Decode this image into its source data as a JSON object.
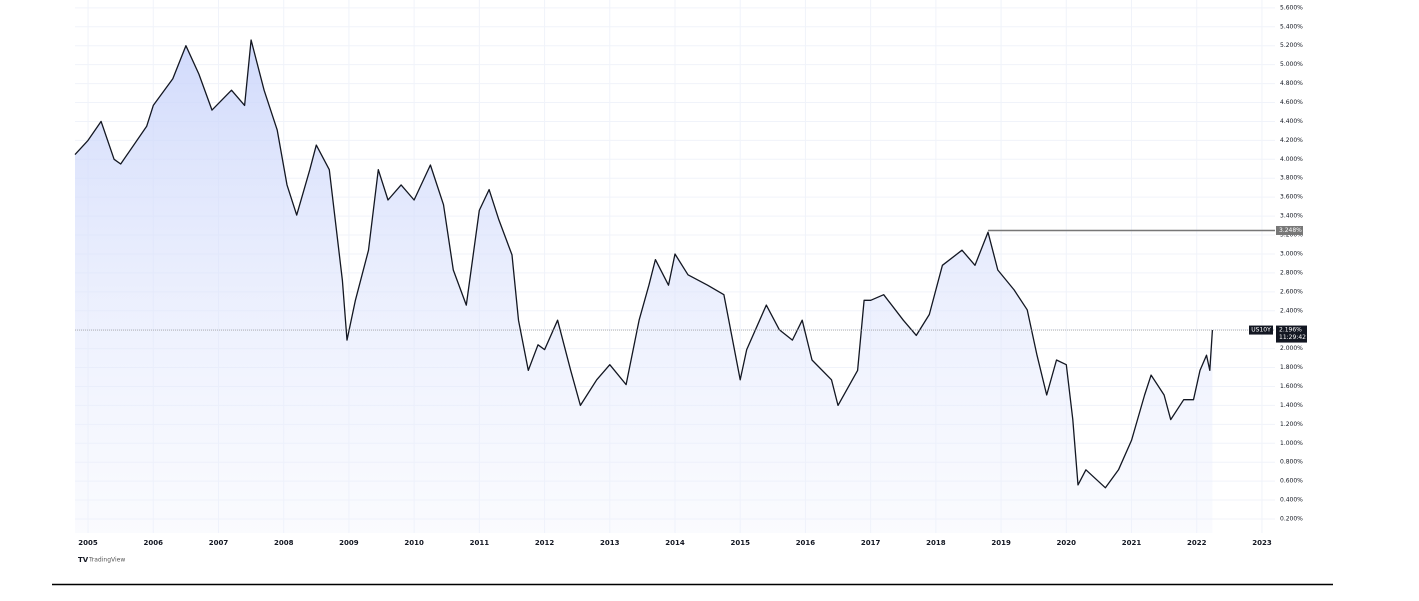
{
  "chart_data": {
    "type": "line",
    "series": [
      {
        "name": "US10Y",
        "color": "#131722",
        "x": [
          2004.8,
          2005.0,
          2005.2,
          2005.4,
          2005.5,
          2005.9,
          2006.0,
          2006.3,
          2006.5,
          2006.7,
          2006.9,
          2007.2,
          2007.4,
          2007.5,
          2007.7,
          2007.9,
          2008.05,
          2008.2,
          2008.4,
          2008.5,
          2008.7,
          2008.9,
          2008.97,
          2009.1,
          2009.3,
          2009.45,
          2009.6,
          2009.8,
          2010.0,
          2010.25,
          2010.45,
          2010.6,
          2010.8,
          2011.0,
          2011.15,
          2011.3,
          2011.5,
          2011.6,
          2011.75,
          2011.9,
          2012.0,
          2012.2,
          2012.4,
          2012.55,
          2012.8,
          2013.0,
          2013.25,
          2013.45,
          2013.6,
          2013.7,
          2013.9,
          2014.0,
          2014.2,
          2014.5,
          2014.75,
          2015.0,
          2015.1,
          2015.4,
          2015.6,
          2015.8,
          2015.95,
          2016.1,
          2016.4,
          2016.5,
          2016.8,
          2016.9,
          2017.0,
          2017.2,
          2017.5,
          2017.7,
          2017.9,
          2018.1,
          2018.4,
          2018.6,
          2018.8,
          2018.95,
          2019.2,
          2019.4,
          2019.55,
          2019.7,
          2019.85,
          2020.0,
          2020.1,
          2020.18,
          2020.3,
          2020.6,
          2020.8,
          2021.0,
          2021.2,
          2021.3,
          2021.5,
          2021.6,
          2021.8,
          2021.95,
          2022.05,
          2022.15,
          2022.2,
          2022.24
        ],
        "values": [
          4.05,
          4.2,
          4.4,
          4.0,
          3.95,
          4.35,
          4.57,
          4.85,
          5.2,
          4.9,
          4.52,
          4.73,
          4.57,
          5.26,
          4.73,
          4.31,
          3.73,
          3.41,
          3.89,
          4.15,
          3.89,
          2.72,
          2.09,
          2.51,
          3.04,
          3.89,
          3.57,
          3.73,
          3.57,
          3.94,
          3.52,
          2.83,
          2.46,
          3.46,
          3.68,
          3.36,
          2.99,
          2.3,
          1.77,
          2.04,
          1.99,
          2.3,
          1.77,
          1.4,
          1.67,
          1.83,
          1.62,
          2.3,
          2.67,
          2.94,
          2.67,
          3.0,
          2.78,
          2.67,
          2.57,
          1.67,
          1.99,
          2.46,
          2.2,
          2.09,
          2.3,
          1.88,
          1.67,
          1.4,
          1.77,
          2.51,
          2.51,
          2.57,
          2.3,
          2.14,
          2.36,
          2.88,
          3.04,
          2.88,
          3.23,
          2.83,
          2.62,
          2.41,
          1.93,
          1.51,
          1.88,
          1.83,
          1.25,
          0.56,
          0.72,
          0.53,
          0.72,
          1.03,
          1.51,
          1.72,
          1.51,
          1.25,
          1.46,
          1.46,
          1.77,
          1.93,
          1.77,
          2.196
        ]
      }
    ],
    "current": {
      "value": 2.196,
      "label": "2.196%",
      "time": "11:29:42"
    },
    "high_line": {
      "x": 2018.8,
      "value": 3.248,
      "label": "3.248%"
    },
    "watermark": "TradingView",
    "xlim": [
      2004.8,
      2023.2
    ],
    "xticks": [
      2005,
      2006,
      2007,
      2008,
      2009,
      2010,
      2011,
      2012,
      2013,
      2014,
      2015,
      2016,
      2017,
      2018,
      2019,
      2020,
      2021,
      2022,
      2023
    ],
    "ylim": [
      0.052,
      5.683
    ],
    "yticks": [
      {
        "value": 0.2,
        "label": "0.200%"
      },
      {
        "value": 0.4,
        "label": "0.400%"
      },
      {
        "value": 0.6,
        "label": "0.600%"
      },
      {
        "value": 0.8,
        "label": "0.800%"
      },
      {
        "value": 1.0,
        "label": "1.000%"
      },
      {
        "value": 1.2,
        "label": "1.200%"
      },
      {
        "value": 1.4,
        "label": "1.400%"
      },
      {
        "value": 1.6,
        "label": "1.600%"
      },
      {
        "value": 1.8,
        "label": "1.800%"
      },
      {
        "value": 2.0,
        "label": "2.000%"
      },
      {
        "value": 2.2,
        "label": "2.200%"
      },
      {
        "value": 2.4,
        "label": "2.400%"
      },
      {
        "value": 2.6,
        "label": "2.600%"
      },
      {
        "value": 2.8,
        "label": "2.800%"
      },
      {
        "value": 3.0,
        "label": "3.000%"
      },
      {
        "value": 3.2,
        "label": "3.200%"
      },
      {
        "value": 3.4,
        "label": "3.400%"
      },
      {
        "value": 3.6,
        "label": "3.600%"
      },
      {
        "value": 3.8,
        "label": "3.800%"
      },
      {
        "value": 4.0,
        "label": "4.000%"
      },
      {
        "value": 4.2,
        "label": "4.200%"
      },
      {
        "value": 4.4,
        "label": "4.400%"
      },
      {
        "value": 4.6,
        "label": "4.600%"
      },
      {
        "value": 4.8,
        "label": "4.800%"
      },
      {
        "value": 5.0,
        "label": "5.000%"
      },
      {
        "value": 5.2,
        "label": "5.200%"
      },
      {
        "value": 5.4,
        "label": "5.400%"
      },
      {
        "value": 5.6,
        "label": "5.600%"
      }
    ],
    "grid": true
  }
}
